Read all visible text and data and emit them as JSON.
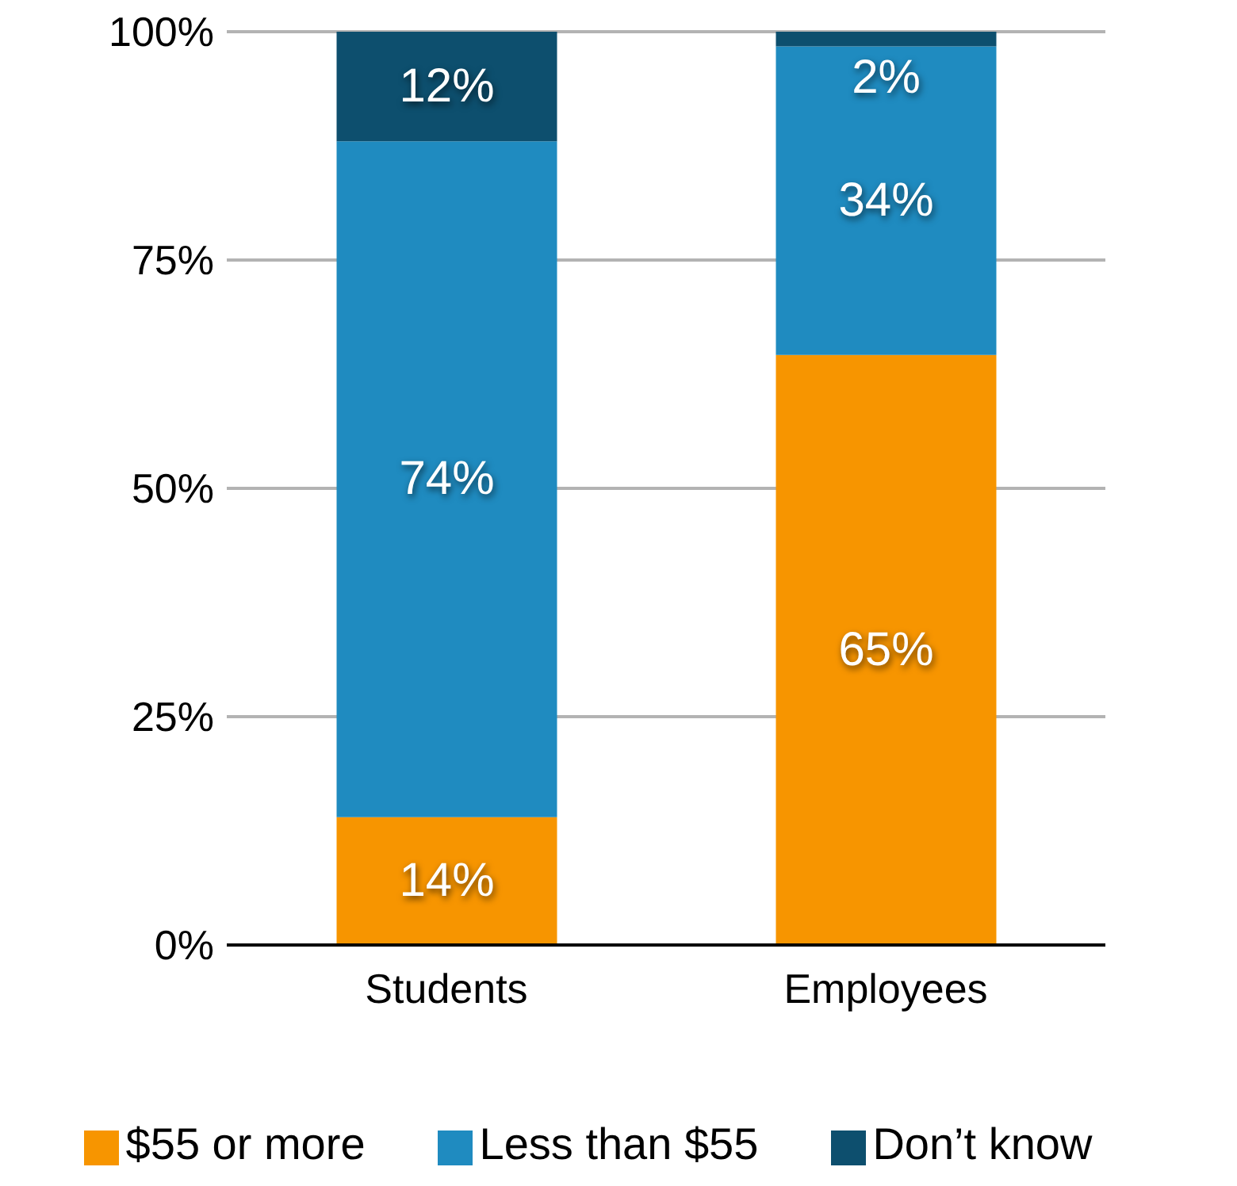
{
  "chart_data": {
    "type": "bar",
    "stacked": true,
    "categories": [
      "Students",
      "Employees"
    ],
    "series": [
      {
        "name": "$55 or more",
        "color": "#f79500",
        "values": [
          14,
          64.6
        ],
        "value_labels": [
          "14%",
          "65%"
        ]
      },
      {
        "name": "Less than $55",
        "color": "#1f8bc0",
        "values": [
          74,
          33.8
        ],
        "value_labels": [
          "74%",
          "34%"
        ]
      },
      {
        "name": "Don’t know",
        "color": "#0d4f6e",
        "values": [
          12,
          1.6
        ],
        "value_labels": [
          "12%",
          "2%"
        ]
      }
    ],
    "ylim": [
      0,
      100
    ],
    "yticks": [
      {
        "value": 0,
        "label": "0%"
      },
      {
        "value": 25,
        "label": "25%"
      },
      {
        "value": 50,
        "label": "50%"
      },
      {
        "value": 75,
        "label": "75%"
      },
      {
        "value": 100,
        "label": "100%"
      }
    ],
    "grid": "y",
    "legend": "bottom"
  }
}
